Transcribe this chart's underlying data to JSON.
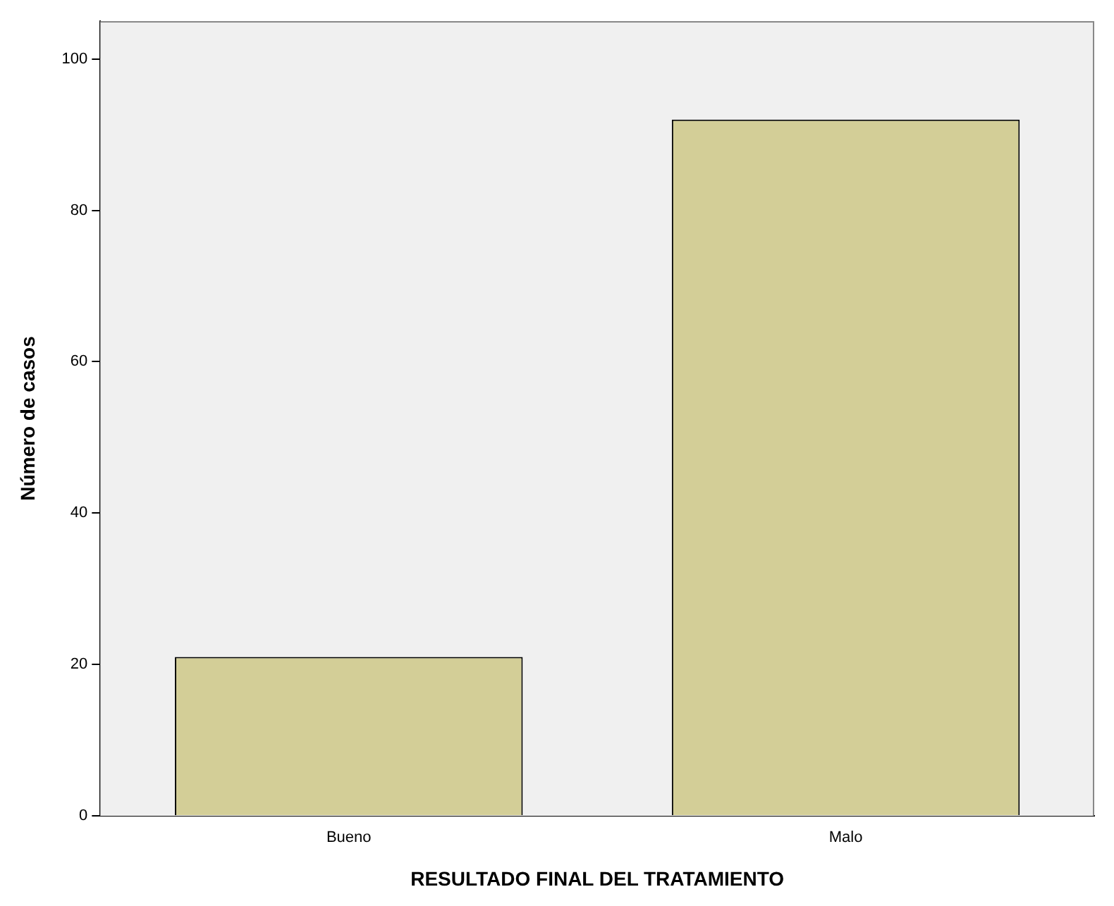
{
  "chart_data": {
    "type": "bar",
    "xlabel": "RESULTADO FINAL DEL TRATAMIENTO",
    "ylabel": "Número de casos",
    "categories": [
      "Bueno",
      "Malo"
    ],
    "values": [
      21,
      92
    ],
    "color": "#d3ce97",
    "ylim": [
      0,
      105
    ],
    "yticks": [
      0,
      20,
      40,
      60,
      80,
      100
    ],
    "grid": false,
    "legend": false
  }
}
